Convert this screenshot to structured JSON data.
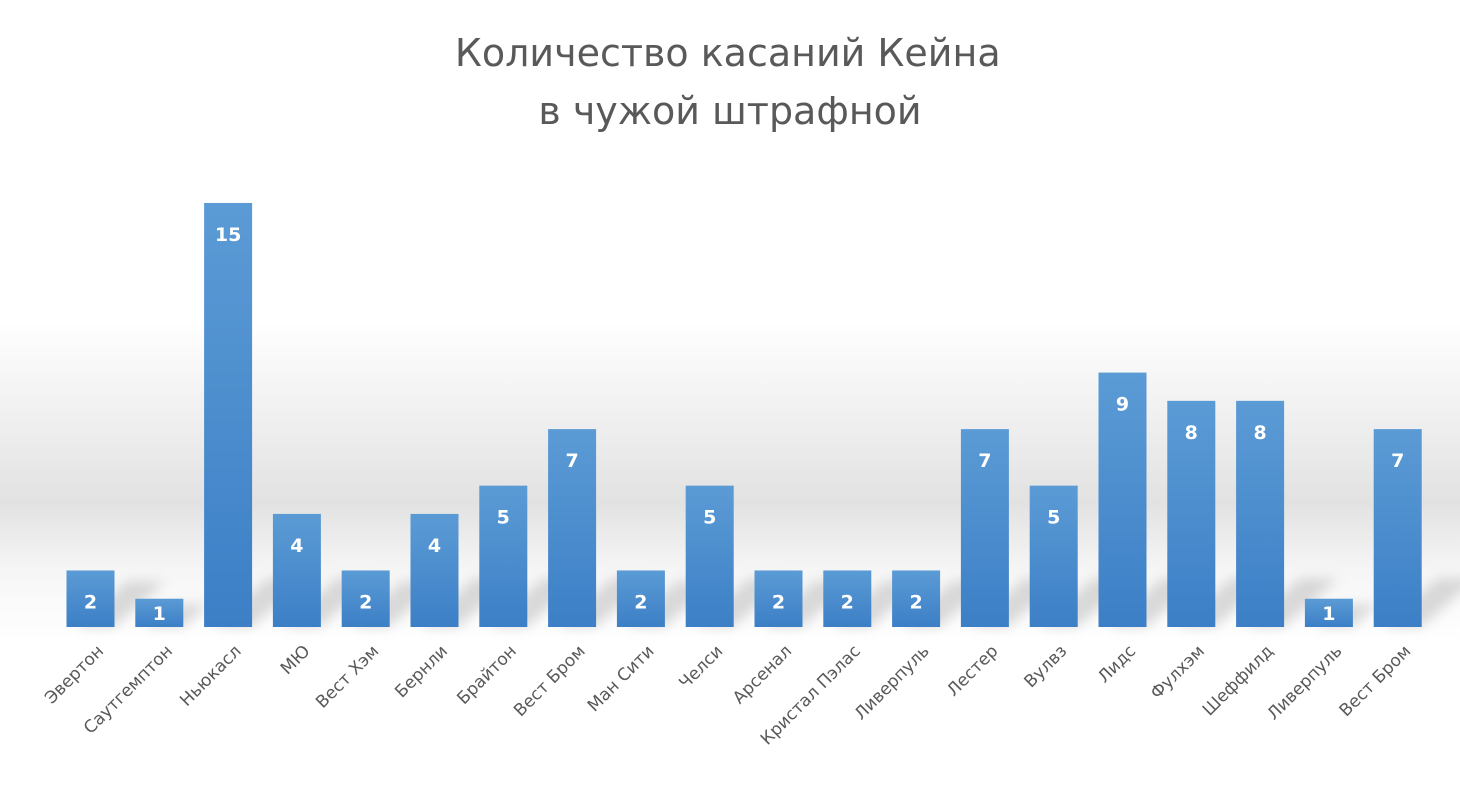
{
  "chart_data": {
    "type": "bar",
    "title": [
      "Количество касаний Кейна",
      "в чужой штрафной"
    ],
    "xlabel": "",
    "ylabel": "",
    "ylim": [
      0,
      16
    ],
    "grid": false,
    "legend": "none",
    "data_labels": true,
    "categories": [
      "Эвертон",
      "Саутгемптон",
      "Ньюкасл",
      "МЮ",
      "Вест Хэм",
      "Бернли",
      "Брайтон",
      "Вест Бром",
      "Ман Сити",
      "Челси",
      "Арсенал",
      "Кристал Пэлас",
      "Ливерпуль",
      "Лестер",
      "Вулвз",
      "Лидс",
      "Фулхэм",
      "Шеффилд",
      "Ливерпуль",
      "Вест Бром"
    ],
    "values": [
      2,
      1,
      15,
      4,
      2,
      4,
      5,
      7,
      2,
      5,
      2,
      2,
      2,
      7,
      5,
      9,
      8,
      8,
      1,
      7
    ],
    "colors": {
      "bar_top": "#5b9bd5",
      "bar_bottom": "#3c7fc6",
      "title": "#595959",
      "label": "#595959"
    }
  }
}
